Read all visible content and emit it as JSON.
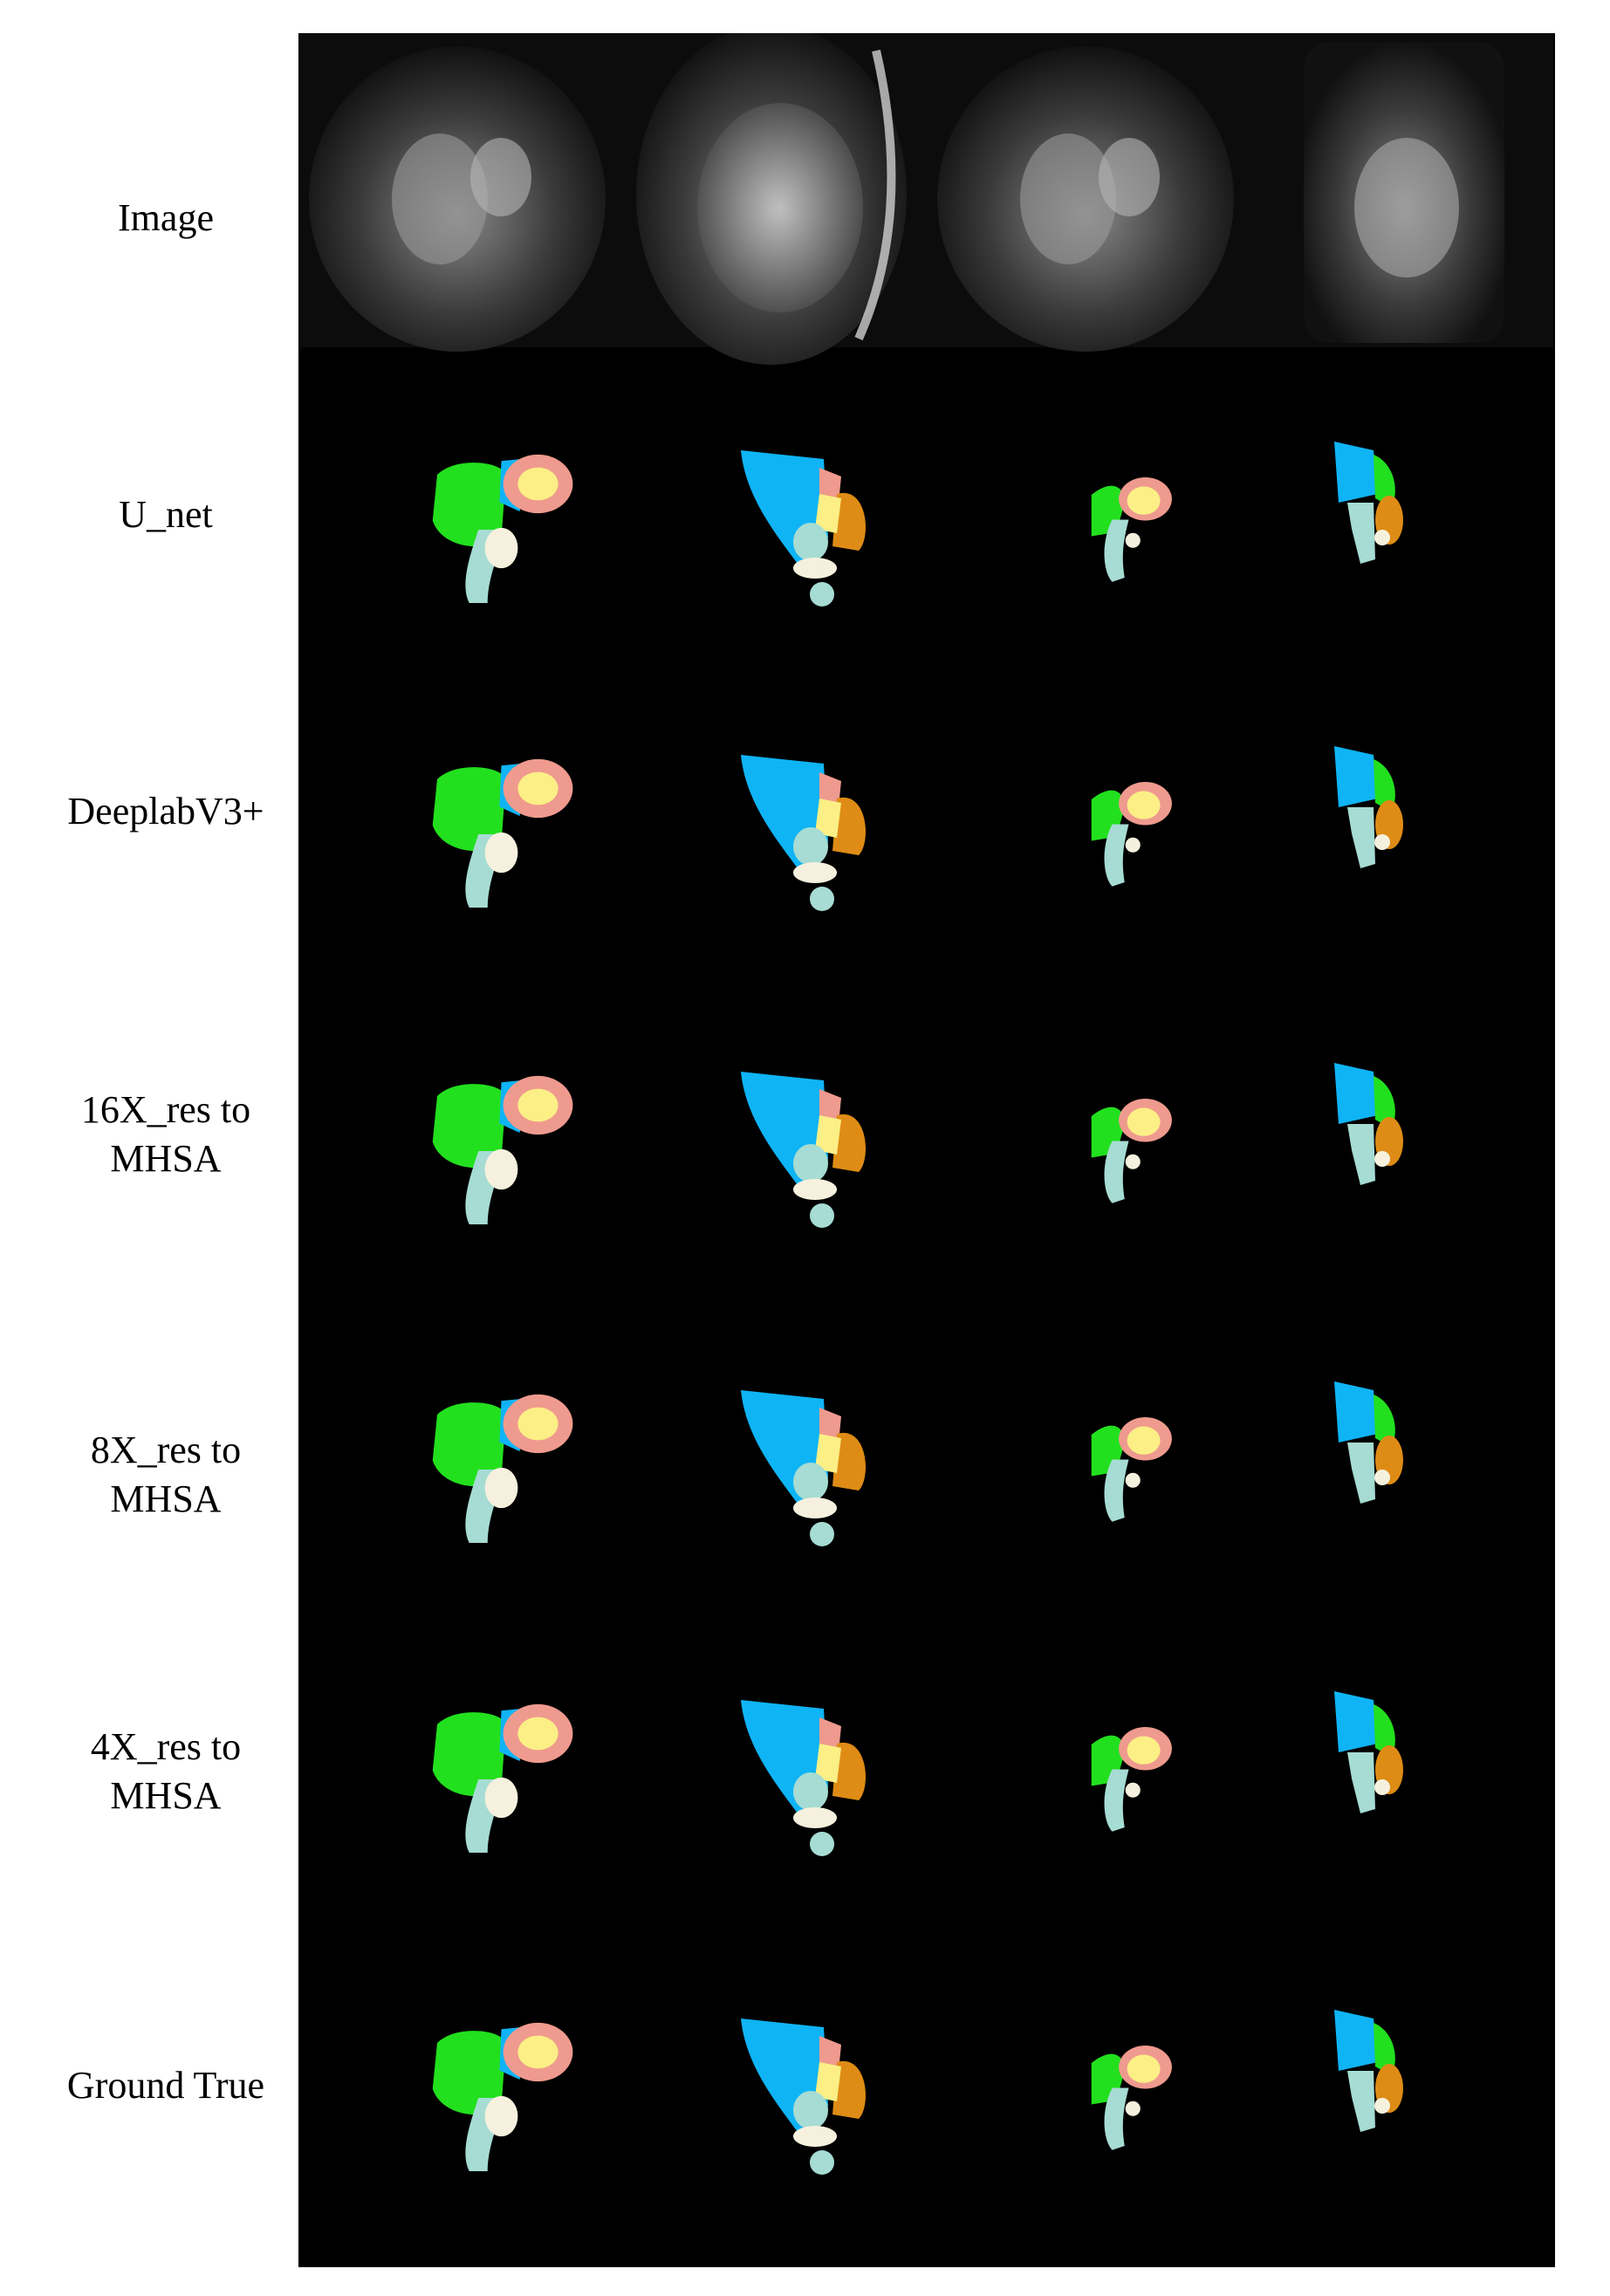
{
  "row_labels": [
    [
      "Image"
    ],
    [
      "U_net"
    ],
    [
      "DeeplabV3+"
    ],
    [
      "16X_res to",
      "MHSA"
    ],
    [
      "8X_res to",
      "MHSA"
    ],
    [
      "4X_res to",
      "MHSA"
    ],
    [
      "Ground True"
    ]
  ],
  "legend_colors": {
    "structure_green": "#22e01e",
    "structure_blue": "#0fb4f5",
    "structure_pink": "#ef9a8e",
    "structure_yellow": "#fbef86",
    "structure_teal": "#a6dcd3",
    "structure_cream": "#f6f1de",
    "structure_orange": "#de8c16"
  },
  "columns": 4
}
